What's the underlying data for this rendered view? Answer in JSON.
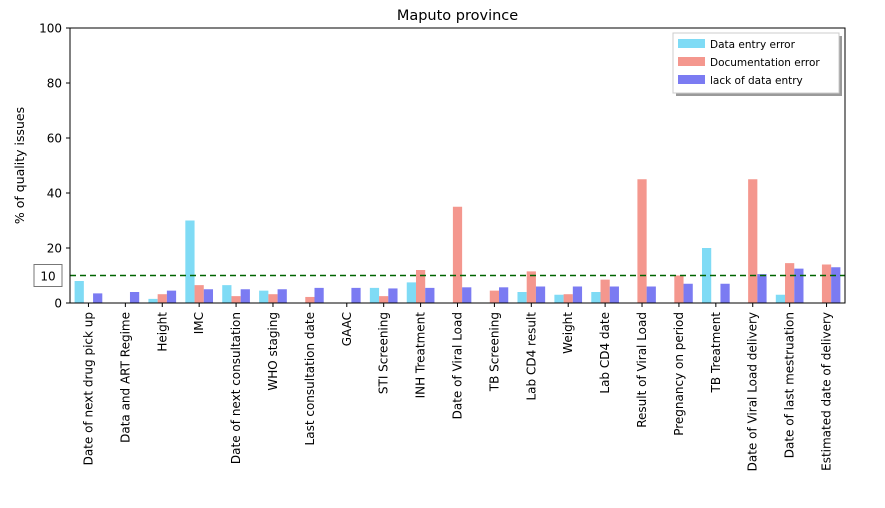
{
  "chart_data": {
    "type": "bar",
    "title": "Maputo province",
    "xlabel": "",
    "ylabel": "% of quality issues",
    "ylim": [
      0,
      100
    ],
    "yticks": [
      0,
      20,
      40,
      60,
      80,
      100
    ],
    "legend_position": "top-right",
    "grid": false,
    "categories": [
      "Date of next drug pick up",
      "Data and ART Regime",
      "Height",
      "IMC",
      "Date of next consultation",
      "WHO staging",
      "Last consultation date",
      "GAAC",
      "STI Screening",
      "INH Treatment",
      "Date of Viral Load",
      "TB Screening",
      "Lab CD4 result",
      "Weight",
      "Lab CD4 date",
      "Result of Viral Load",
      "Pregnancy on period",
      "TB Treatment",
      "Date of Viral Load delivery",
      "Date of last mestruation",
      "Estimated date of delivery"
    ],
    "series": [
      {
        "name": "Data entry error",
        "color": "#7fdbf5",
        "values": [
          8,
          0,
          1.5,
          30,
          6.5,
          4.5,
          0,
          0,
          5.5,
          7.5,
          0,
          0,
          4,
          3,
          4,
          0,
          0,
          20,
          0,
          3,
          0
        ]
      },
      {
        "name": "Documentation error",
        "color": "#f4978e",
        "values": [
          0,
          0,
          3.2,
          6.5,
          2.5,
          3.2,
          2.2,
          0,
          2.5,
          12,
          35,
          4.5,
          11.5,
          3.2,
          8.5,
          45,
          10,
          0,
          45,
          14.5,
          14
        ]
      },
      {
        "name": "lack of data entry",
        "color": "#7b7bf2",
        "values": [
          3.5,
          4,
          4.5,
          5,
          5,
          5,
          5.5,
          5.5,
          5.3,
          5.5,
          5.7,
          5.7,
          6,
          6,
          6,
          6,
          7,
          7,
          10.5,
          12.5,
          13
        ]
      }
    ],
    "reference_line": {
      "value": 10,
      "label": "10",
      "color": "#006400",
      "style": "dashed"
    }
  }
}
